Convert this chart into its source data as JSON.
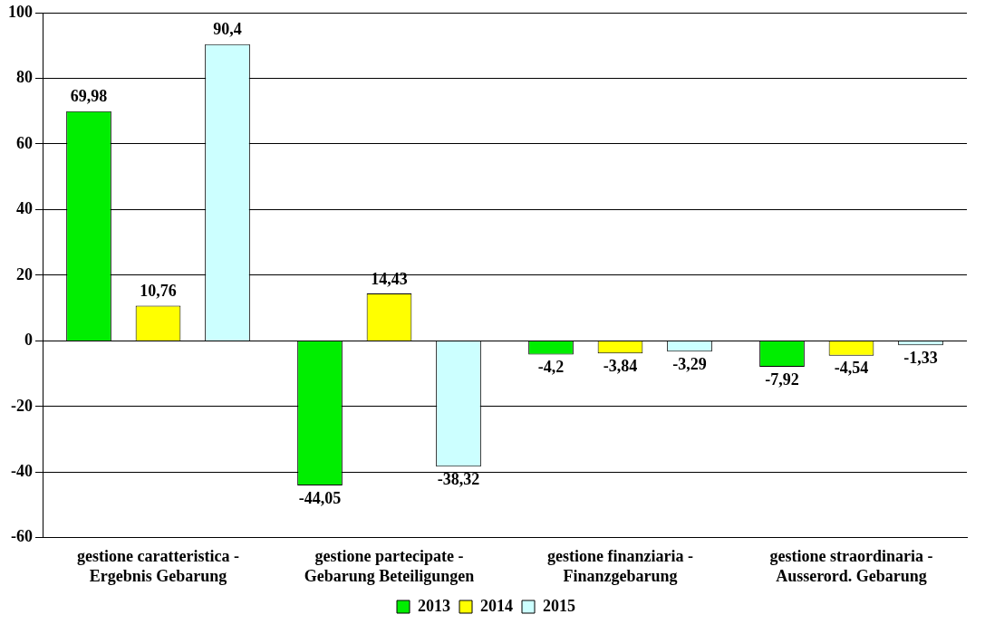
{
  "chart_data": {
    "type": "bar",
    "categories": [
      "gestione caratteristica -\nErgebnis Gebarung",
      "gestione partecipate -\nGebarung Beteiligungen",
      "gestione finanziaria -\nFinanzgebarung",
      "gestione straordinaria -\nAusserord. Gebarung"
    ],
    "series": [
      {
        "name": "2013",
        "color": "#00ee00",
        "values": [
          69.98,
          -44.05,
          -4.2,
          -7.92
        ],
        "value_labels": [
          "69,98",
          "-44,05",
          "-4,2",
          "-7,92"
        ]
      },
      {
        "name": "2014",
        "color": "#ffff00",
        "values": [
          10.76,
          14.43,
          -3.84,
          -4.54
        ],
        "value_labels": [
          "10,76",
          "14,43",
          "-3,84",
          "-4,54"
        ]
      },
      {
        "name": "2015",
        "color": "#ccffff",
        "values": [
          90.4,
          -38.32,
          -3.29,
          -1.33
        ],
        "value_labels": [
          "90,4",
          "-38,32",
          "-3,29",
          "-1,33"
        ]
      }
    ],
    "ylim": [
      -60,
      100
    ],
    "yticks": [
      -60,
      -40,
      -20,
      0,
      20,
      40,
      60,
      80,
      100
    ],
    "grid": "y",
    "legend": "bottom"
  }
}
